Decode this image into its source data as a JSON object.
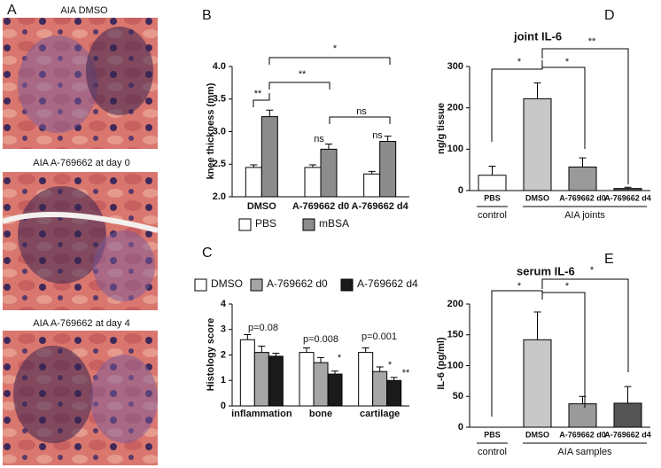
{
  "panel_a": {
    "panel": "A",
    "images": [
      {
        "label": "AIA DMSO"
      },
      {
        "label": "AIA A-769662 at day 0"
      },
      {
        "label": "AIA A-769662 at day 4"
      }
    ]
  },
  "chart_data": [
    {
      "type": "bar",
      "panel": "B",
      "ylabel": "knee thickness (mm)",
      "categories": [
        "DMSO",
        "A-769662 d0",
        "A-769662 d4"
      ],
      "series": [
        {
          "name": "PBS",
          "color": "#ffffff",
          "values": [
            2.45,
            2.45,
            2.35
          ],
          "errors": [
            0.04,
            0.04,
            0.04
          ]
        },
        {
          "name": "mBSA",
          "color": "#8c8c8c",
          "values": [
            3.23,
            2.73,
            2.85
          ],
          "errors": [
            0.1,
            0.08,
            0.08
          ]
        }
      ],
      "ylim": [
        2,
        4
      ],
      "yticks": [
        {
          "value": 2,
          "label": "2.0"
        },
        {
          "value": 2.5,
          "label": "2.5"
        },
        {
          "value": 3,
          "label": "3.0"
        },
        {
          "value": 3.5,
          "label": "3.5"
        },
        {
          "value": 4,
          "label": "4.0"
        }
      ],
      "annotations": [
        "**",
        "**",
        "*",
        "ns",
        "ns",
        "ns"
      ]
    },
    {
      "type": "bar",
      "panel": "C",
      "ylabel": "Histology score",
      "categories": [
        "inflammation",
        "bone",
        "cartilage"
      ],
      "series": [
        {
          "name": "DMSO",
          "color": "#ffffff",
          "values": [
            2.6,
            2.1,
            2.1
          ],
          "errors": [
            0.2,
            0.18,
            0.18
          ]
        },
        {
          "name": "A-769662 d0",
          "color": "#a6a6a6",
          "values": [
            2.1,
            1.7,
            1.35
          ],
          "errors": [
            0.25,
            0.2,
            0.18
          ]
        },
        {
          "name": "A-769662 d4",
          "color": "#1a1a1a",
          "values": [
            1.95,
            1.25,
            1.0
          ],
          "errors": [
            0.12,
            0.12,
            0.12
          ]
        }
      ],
      "ylim": [
        0,
        4
      ],
      "yticks": [
        0,
        1,
        2,
        3,
        4
      ],
      "annotations": [
        "p=0.08",
        "p=0.008",
        "p=0.001",
        "*",
        "*",
        "**"
      ]
    },
    {
      "type": "bar",
      "panel": "D",
      "title": "joint IL-6",
      "ylabel": "ng/g tissue",
      "categories": [
        "PBS",
        "DMSO",
        "A-769662 d0",
        "A-769662 d4"
      ],
      "values": [
        37,
        222,
        57,
        5
      ],
      "errors": [
        22,
        38,
        22,
        3
      ],
      "colors": [
        "#ffffff",
        "#c8c8c8",
        "#9a9a9a",
        "#555555"
      ],
      "ylim": [
        0,
        300
      ],
      "yticks": [
        0,
        100,
        200,
        300
      ],
      "groups": [
        "control",
        "AIA joints"
      ],
      "annotations": [
        "*",
        "*",
        "**"
      ]
    },
    {
      "type": "bar",
      "panel": "E",
      "title": "serum IL-6",
      "ylabel": "IL-6 (pg/ml)",
      "categories": [
        "PBS",
        "DMSO",
        "A-769662 d0",
        "A-769662 d4"
      ],
      "values": [
        0,
        142,
        38,
        39
      ],
      "errors": [
        0,
        45,
        12,
        27
      ],
      "colors": [
        "#ffffff",
        "#c8c8c8",
        "#9a9a9a",
        "#555555"
      ],
      "ylim": [
        0,
        200
      ],
      "yticks": [
        0,
        50,
        100,
        150,
        200
      ],
      "groups": [
        "control",
        "AIA samples"
      ],
      "annotations": [
        "*",
        "*",
        "*"
      ]
    }
  ]
}
